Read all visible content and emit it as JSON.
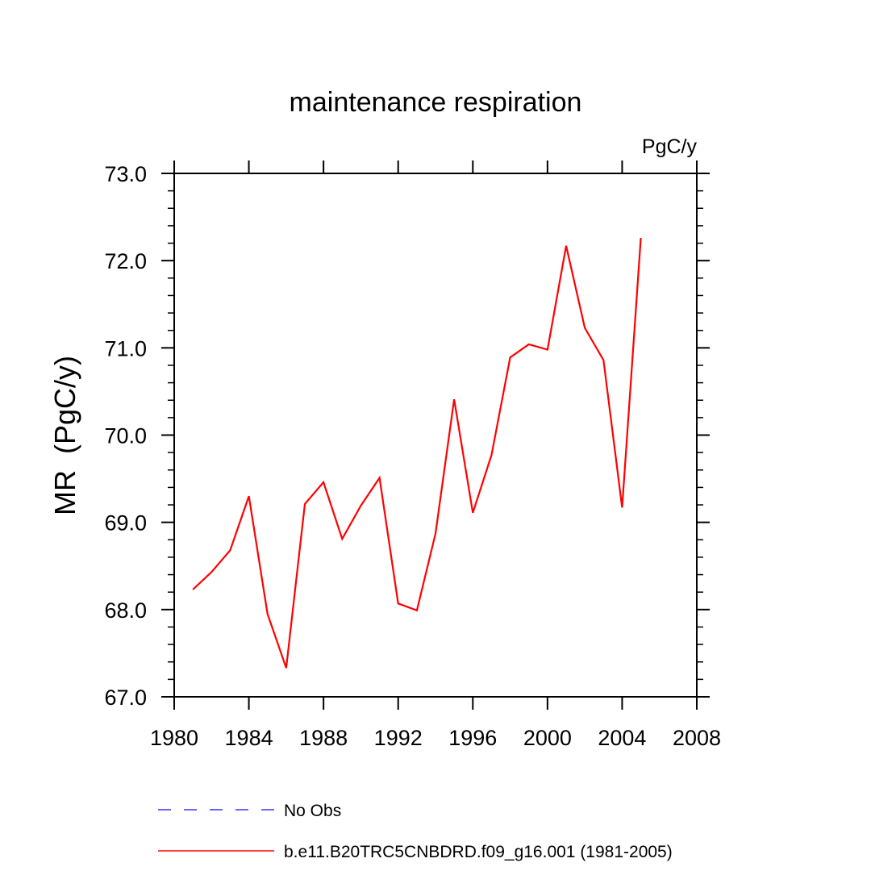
{
  "chart_data": {
    "type": "line",
    "title": "maintenance respiration",
    "units_label": "PgC/y",
    "ylabel": "MR  (PgC/y)",
    "xlabel": "",
    "xlim": [
      1980,
      2008
    ],
    "ylim": [
      67.0,
      73.0
    ],
    "x_ticks": [
      1980,
      1984,
      1988,
      1992,
      1996,
      2000,
      2004,
      2008
    ],
    "y_ticks": [
      "67.0",
      "68.0",
      "69.0",
      "70.0",
      "71.0",
      "72.0",
      "73.0"
    ],
    "grid": false,
    "legend_position": "bottom",
    "series": [
      {
        "name": "No Obs",
        "color": "#3333ff",
        "style": "dashed",
        "x": [],
        "y": []
      },
      {
        "name": "b.e11.B20TRC5CNBDRD.f09_g16.001 (1981-2005)",
        "color": "#ff0000",
        "style": "solid",
        "x": [
          1981,
          1982,
          1983,
          1984,
          1985,
          1986,
          1987,
          1988,
          1989,
          1990,
          1991,
          1992,
          1993,
          1994,
          1995,
          1996,
          1997,
          1998,
          1999,
          2000,
          2001,
          2002,
          2003,
          2004,
          2005
        ],
        "y": [
          68.23,
          68.43,
          68.68,
          69.3,
          67.95,
          67.33,
          69.21,
          69.46,
          68.81,
          69.19,
          69.51,
          68.07,
          67.99,
          68.87,
          70.41,
          69.11,
          69.77,
          70.89,
          71.04,
          70.98,
          72.17,
          71.23,
          70.86,
          69.17,
          72.26
        ]
      }
    ]
  }
}
